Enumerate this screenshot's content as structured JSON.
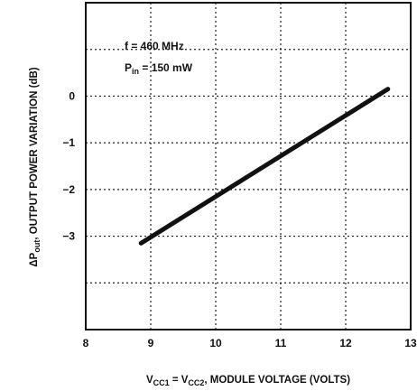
{
  "chart_data": {
    "type": "line",
    "xlabel_parts": [
      "V",
      "CC1",
      " = V",
      "CC2",
      ", MODULE VOLTAGE (VOLTS)"
    ],
    "ylabel_parts": [
      "ΔP",
      "out",
      ", OUTPUT POWER VARIATION (dB)"
    ],
    "annotations": {
      "freq": "f = 460 MHz",
      "pin_main": "P",
      "pin_sub": "in",
      "pin_value": " = 150 mW"
    },
    "xlim": [
      8,
      13
    ],
    "ylim": [
      -5,
      2
    ],
    "x_ticks": [
      8,
      9,
      10,
      11,
      12,
      13
    ],
    "x_tick_labels": [
      "8",
      "9",
      "10",
      "11",
      "12",
      "13"
    ],
    "y_ticks": [
      0,
      -1,
      -2,
      -3
    ],
    "y_tick_labels": [
      "0",
      "−1",
      "−2",
      "−3"
    ],
    "grid": true,
    "series": [
      {
        "x": [
          8.85,
          12.65
        ],
        "y": [
          -3.15,
          0.15
        ]
      }
    ]
  }
}
